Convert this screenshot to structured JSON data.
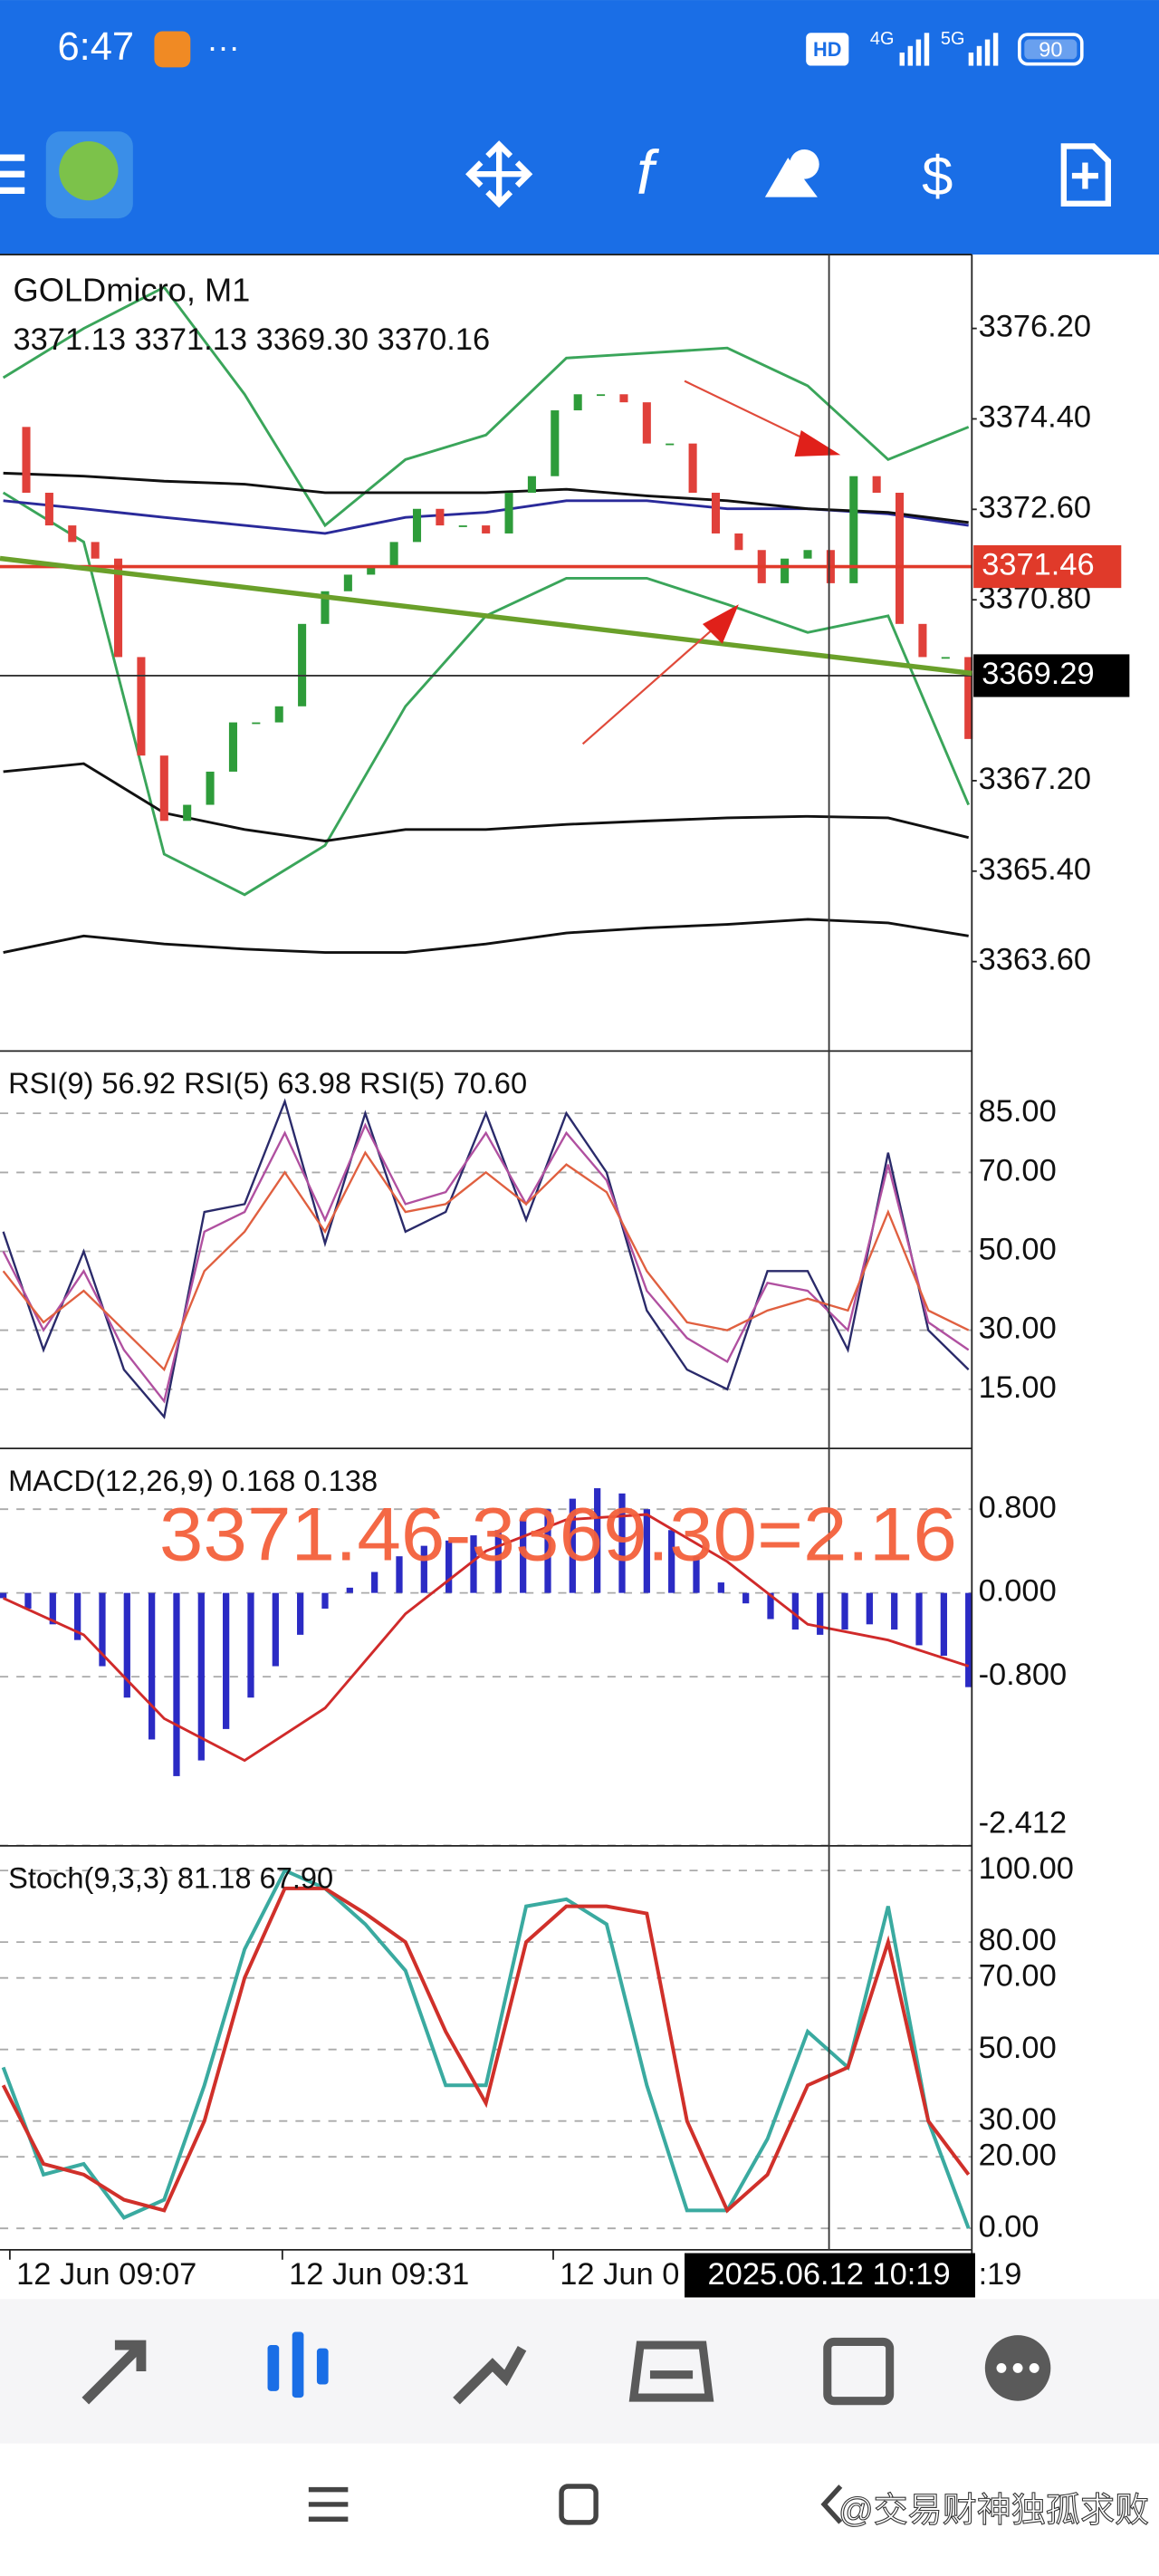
{
  "status_bar": {
    "time": "6:47",
    "network": [
      "HD",
      "4G",
      "5G"
    ],
    "battery": "90"
  },
  "main": {
    "symbol": "GOLDmicro, M1",
    "ohlc": "3371.13 3371.13 3369.30 3370.16",
    "ylim": [
      3361.82,
      3377.67
    ],
    "ticks": [
      {
        "value": 3376.2,
        "label": "3376.20"
      },
      {
        "value": 3374.4,
        "label": "3374.40"
      },
      {
        "value": 3372.6,
        "label": "3372.60"
      },
      {
        "value": 3370.8,
        "label": "3370.80"
      },
      {
        "value": 3367.2,
        "label": "3367.20"
      },
      {
        "value": 3365.4,
        "label": "3365.40"
      },
      {
        "value": 3363.6,
        "label": "3363.60"
      }
    ],
    "bid": {
      "value": 3371.46,
      "label": "3371.46",
      "color": "#e03a2a"
    },
    "cursor": {
      "value": 3369.29,
      "label": "3369.29"
    },
    "closes": {
      "up_color": "#2e9c3a",
      "down_color": "#e0403a",
      "values": [
        3374.24,
        3372.93,
        3372.28,
        3371.95,
        3371.62,
        3369.66,
        3367.7,
        3366.4,
        3366.72,
        3367.38,
        3368.36,
        3368.36,
        3368.68,
        3370.32,
        3370.97,
        3371.3,
        3371.46,
        3371.95,
        3372.61,
        3372.28,
        3372.28,
        3372.12,
        3372.93,
        3373.26,
        3374.57,
        3374.89,
        3374.89,
        3374.73,
        3373.91,
        3373.91,
        3372.93,
        3372.12,
        3371.79,
        3371.13,
        3371.62,
        3371.79,
        3371.13,
        3373.26,
        3372.93,
        3370.32,
        3369.66,
        3369.66,
        3368.03
      ]
    },
    "lines": [
      {
        "color": "#3aa55a",
        "values": [
          3375.22,
          3376.2,
          3377.02,
          3374.89,
          3372.28,
          3373.59,
          3374.08,
          3375.61,
          3375.71,
          3375.81,
          3375.06,
          3373.59,
          3374.24
        ]
      },
      {
        "color": "#3aa55a",
        "values": [
          3372.93,
          3371.95,
          3365.74,
          3364.93,
          3365.91,
          3368.68,
          3370.48,
          3371.23,
          3371.23,
          3370.71,
          3370.15,
          3370.48,
          3366.72
        ]
      },
      {
        "color": "#2a2a9a",
        "values": [
          3372.77,
          3372.61,
          3372.44,
          3372.28,
          3372.12,
          3372.44,
          3372.54,
          3372.77,
          3372.77,
          3372.61,
          3372.61,
          3372.51,
          3372.28
        ]
      },
      {
        "color": "#111111",
        "values": [
          3373.32,
          3373.26,
          3373.16,
          3373.1,
          3372.93,
          3372.93,
          3372.93,
          3373.0,
          3372.87,
          3372.77,
          3372.61,
          3372.54,
          3372.34
        ]
      },
      {
        "color": "#111111",
        "values": [
          3367.38,
          3367.54,
          3366.56,
          3366.23,
          3366.0,
          3366.23,
          3366.23,
          3366.33,
          3366.4,
          3366.46,
          3366.49,
          3366.46,
          3366.07
        ]
      },
      {
        "color": "#111111",
        "values": [
          3363.78,
          3364.11,
          3363.95,
          3363.85,
          3363.78,
          3363.78,
          3363.95,
          3364.17,
          3364.27,
          3364.34,
          3364.44,
          3364.37,
          3364.11
        ]
      }
    ]
  },
  "rsi": {
    "title": "RSI(9) 56.92 RSI(5) 63.98 RSI(5) 70.60",
    "ylim": [
      0,
      100.8
    ],
    "ticks": [
      {
        "value": 85,
        "label": "85.00"
      },
      {
        "value": 70,
        "label": "70.00"
      },
      {
        "value": 50,
        "label": "50.00"
      },
      {
        "value": 30,
        "label": "30.00"
      },
      {
        "value": 15,
        "label": "15.00"
      }
    ],
    "series": [
      {
        "color": "#2a2a6a",
        "values": [
          55,
          25,
          50,
          20,
          8,
          60,
          62,
          88,
          52,
          85,
          55,
          60,
          85,
          58,
          85,
          70,
          35,
          20,
          15,
          45,
          45,
          25,
          75,
          30,
          20
        ]
      },
      {
        "color": "#b050a0",
        "values": [
          50,
          30,
          45,
          25,
          12,
          55,
          60,
          80,
          58,
          82,
          62,
          65,
          80,
          62,
          80,
          68,
          40,
          28,
          22,
          42,
          40,
          30,
          72,
          32,
          25
        ]
      },
      {
        "color": "#e06040",
        "values": [
          45,
          32,
          40,
          30,
          20,
          45,
          55,
          70,
          55,
          75,
          60,
          62,
          70,
          62,
          72,
          65,
          45,
          32,
          30,
          35,
          38,
          35,
          60,
          35,
          30
        ]
      }
    ]
  },
  "macd": {
    "title": "MACD(12,26,9) 0.168 0.138",
    "ylim": [
      -2.416,
      1.38
    ],
    "ticks": [
      {
        "value": 0.8,
        "label": "0.800"
      },
      {
        "value": 0,
        "label": "0.000"
      },
      {
        "value": -0.8,
        "label": "-0.800"
      },
      {
        "value": -2.412,
        "label": "-2.412"
      }
    ],
    "histogram": {
      "color": "#2b2bc4",
      "values": [
        -0.05,
        -0.15,
        -0.3,
        -0.45,
        -0.7,
        -1.0,
        -1.4,
        -1.75,
        -1.6,
        -1.3,
        -1.0,
        -0.7,
        -0.4,
        -0.15,
        0.05,
        0.2,
        0.35,
        0.45,
        0.5,
        0.55,
        0.6,
        0.7,
        0.8,
        0.9,
        1.0,
        0.95,
        0.8,
        0.6,
        0.35,
        0.1,
        -0.1,
        -0.25,
        -0.35,
        -0.4,
        -0.35,
        -0.3,
        -0.35,
        -0.5,
        -0.6,
        -0.9
      ]
    },
    "signal": {
      "color": "#d02a2a",
      "values": [
        -0.05,
        -0.4,
        -1.2,
        -1.6,
        -1.1,
        -0.2,
        0.4,
        0.7,
        0.75,
        0.3,
        -0.3,
        -0.45,
        -0.7
      ]
    }
  },
  "stoch": {
    "title": "Stoch(9,3,3) 81.18 67.90",
    "ylim": [
      -6,
      106.9
    ],
    "ticks": [
      {
        "value": 100,
        "label": "100.00"
      },
      {
        "value": 80,
        "label": "80.00"
      },
      {
        "value": 70,
        "label": "70.00"
      },
      {
        "value": 50,
        "label": "50.00"
      },
      {
        "value": 30,
        "label": "30.00"
      },
      {
        "value": 20,
        "label": "20.00"
      },
      {
        "value": 0,
        "label": "0.00"
      }
    ],
    "series": [
      {
        "color": "#3aaaa0",
        "values": [
          45,
          15,
          18,
          3,
          8,
          40,
          78,
          100,
          95,
          85,
          72,
          40,
          40,
          90,
          92,
          85,
          40,
          5,
          5,
          25,
          55,
          45,
          90,
          30,
          0
        ]
      },
      {
        "color": "#d0302a",
        "values": [
          40,
          18,
          15,
          8,
          5,
          30,
          70,
          95,
          95,
          88,
          80,
          55,
          35,
          80,
          90,
          90,
          88,
          30,
          5,
          15,
          40,
          45,
          80,
          30,
          15
        ]
      }
    ]
  },
  "annotation": "3371.46-3369.30=2.16",
  "x_axis": {
    "labels": [
      "12 Jun 09:07",
      "12 Jun 09:31",
      "12 Jun 0",
      ":19"
    ],
    "cursor": "2025.06.12 10:19"
  },
  "watermark": "@交易财神独孤求败"
}
